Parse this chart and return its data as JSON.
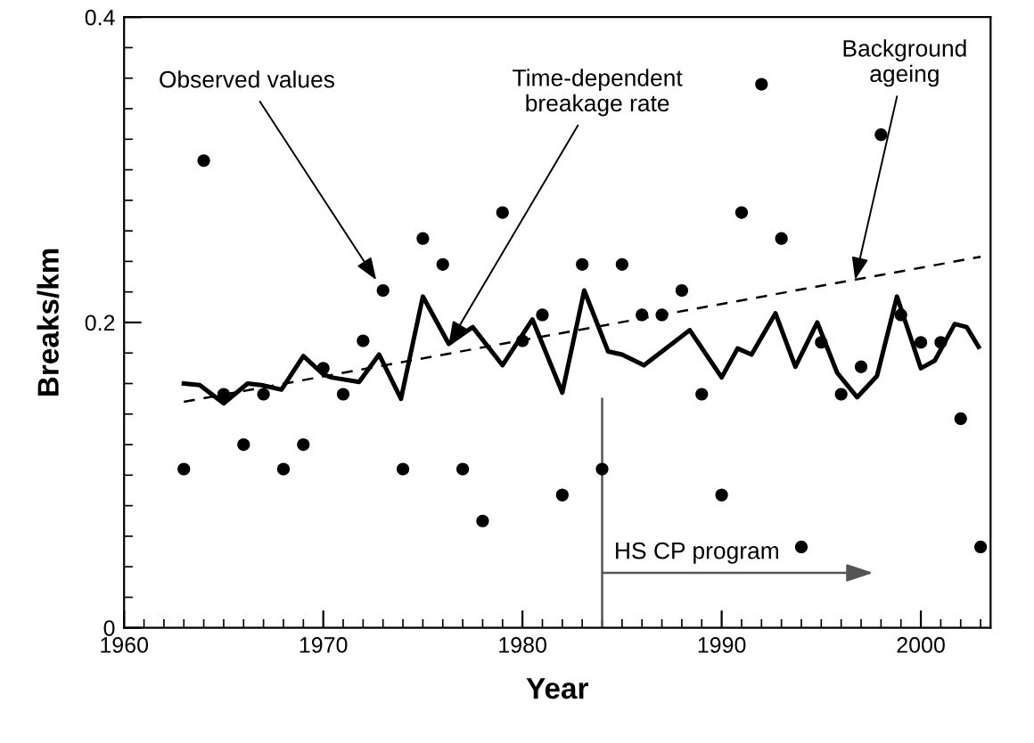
{
  "chart_data": {
    "type": "scatter",
    "xlabel": "Year",
    "ylabel": "Breaks/km",
    "xlim": [
      1960,
      2003.5
    ],
    "ylim": [
      0,
      0.4
    ],
    "xticks": [
      1960,
      1970,
      1980,
      1990,
      2000
    ],
    "yticks": [
      0,
      0.2,
      0.4
    ],
    "grid": false,
    "legend": false,
    "series": [
      {
        "color": "#000000",
        "marker": "circle",
        "x": [
          1963,
          1964,
          1965,
          1966,
          1967,
          1968,
          1969,
          1970,
          1971,
          1972,
          1973,
          1974,
          1975,
          1976,
          1977,
          1978,
          1979,
          1980,
          1981,
          1982,
          1983,
          1984,
          1985,
          1986,
          1987,
          1988,
          1989,
          1990,
          1991,
          1992,
          1993,
          1994,
          1995,
          1996,
          1997,
          1998,
          1999,
          2000,
          2001,
          2002,
          2003
        ],
        "values": [
          0.104,
          0.306,
          0.153,
          0.12,
          0.153,
          0.104,
          0.12,
          0.17,
          0.153,
          0.188,
          0.221,
          0.104,
          0.255,
          0.238,
          0.104,
          0.07,
          0.272,
          0.188,
          0.205,
          0.087,
          0.238,
          0.104,
          0.238,
          0.205,
          0.205,
          0.221,
          0.153,
          0.087,
          0.272,
          0.356,
          0.255,
          0.053,
          0.187,
          0.153,
          0.171,
          0.323,
          0.205,
          0.187,
          0.187,
          0.137,
          0.053
        ]
      },
      {
        "type": "line",
        "color": "#000000",
        "line_style": "solid",
        "x": [
          1963.0,
          1963.8,
          1965.0,
          1966.2,
          1966.9,
          1967.9,
          1969.0,
          1970.0,
          1970.4,
          1971.8,
          1972.8,
          1973.9,
          1975.0,
          1976.3,
          1977.5,
          1979.0,
          1980.5,
          1982.0,
          1983.1,
          1984.3,
          1985.0,
          1986.1,
          1988.4,
          1990.0,
          1990.8,
          1991.5,
          1992.7,
          1993.7,
          1994.8,
          1995.8,
          1996.8,
          1997.8,
          1998.8,
          2000.0,
          2000.7,
          2001.7,
          2002.3,
          2002.9
        ],
        "values": [
          0.16,
          0.159,
          0.147,
          0.16,
          0.159,
          0.156,
          0.178,
          0.166,
          0.164,
          0.161,
          0.179,
          0.15,
          0.217,
          0.186,
          0.197,
          0.172,
          0.202,
          0.154,
          0.221,
          0.181,
          0.179,
          0.172,
          0.195,
          0.164,
          0.183,
          0.179,
          0.206,
          0.171,
          0.2,
          0.167,
          0.151,
          0.165,
          0.217,
          0.17,
          0.175,
          0.199,
          0.197,
          0.184
        ]
      },
      {
        "type": "line",
        "color": "#000000",
        "line_style": "dashed",
        "x": [
          1963,
          2003
        ],
        "values": [
          0.148,
          0.243
        ]
      }
    ],
    "annotations": [
      {
        "text": "Observed values",
        "x": 1973,
        "y": 0.221
      },
      {
        "text": "Time-dependent\nbreakage rate",
        "x": 1976.3,
        "y": 0.186
      },
      {
        "text": "Background\nageing",
        "x": 1996.7,
        "y": 0.228
      }
    ],
    "ref_lines": [
      {
        "axis": "x",
        "value": 1984,
        "label": "HS CP program",
        "color": "#555555",
        "line_style": "solid"
      }
    ]
  }
}
